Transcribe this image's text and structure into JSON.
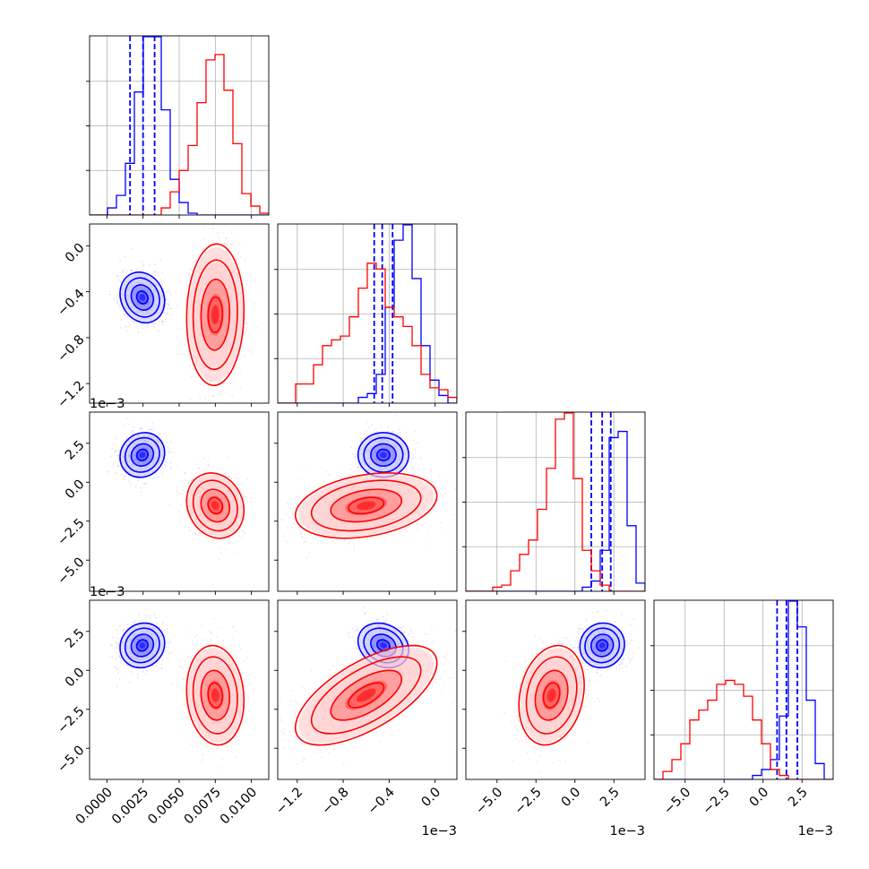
{
  "chart_data": {
    "type": "corner",
    "grid": true,
    "colors": {
      "blue": "#0000ff",
      "red": "#ff0000"
    },
    "parameters": [
      {
        "range": [
          -0.0012,
          0.0112
        ],
        "ticks": [
          0.0,
          0.0025,
          0.005,
          0.0075,
          0.01
        ],
        "tick_labels": [
          "0.0000",
          "0.0025",
          "0.0050",
          "0.0075",
          "0.0100"
        ],
        "offset_label": ""
      },
      {
        "range": [
          -1.37,
          0.19
        ],
        "ticks": [
          -1.2,
          -0.8,
          -0.4,
          0.0
        ],
        "tick_labels": [
          "−1.2",
          "−0.8",
          "−0.4",
          "0.0"
        ],
        "offset_label": "1e−3"
      },
      {
        "range": [
          -7.0,
          4.5
        ],
        "ticks": [
          -5.0,
          -2.5,
          0.0,
          2.5
        ],
        "tick_labels": [
          "−5.0",
          "−2.5",
          "0.0",
          "2.5"
        ],
        "offset_label": "1e−3"
      },
      {
        "range": [
          -7.0,
          4.5
        ],
        "ticks": [
          -5.0,
          -2.5,
          0.0,
          2.5
        ],
        "tick_labels": [
          "−5.0",
          "−2.5",
          "0.0",
          "2.5"
        ],
        "offset_label": "1e−3"
      }
    ],
    "series": [
      {
        "color": "#0000ff",
        "means": [
          0.00245,
          -0.45,
          1.75,
          1.6
        ],
        "sds": [
          0.0007,
          0.1,
          0.65,
          0.65
        ],
        "corr": [
          [
            0,
            1,
            -0.15
          ],
          [
            0,
            2,
            0.1
          ],
          [
            0,
            3,
            0.1
          ],
          [
            1,
            2,
            0.0
          ],
          [
            1,
            3,
            -0.2
          ],
          [
            2,
            3,
            0.05
          ]
        ],
        "quantiles": [
          [
            0.0016,
            0.0025,
            0.0033
          ],
          [
            -0.53,
            -0.46,
            -0.37
          ],
          [
            1.05,
            1.75,
            2.3
          ],
          [
            0.9,
            1.5,
            2.2
          ]
        ],
        "histograms": [
          [
            0,
            0,
            0.04,
            0.11,
            0.29,
            0.69,
            1.0,
            1.0,
            0.59,
            0.2,
            0.07,
            0.01,
            0,
            0,
            0,
            0,
            0,
            0,
            0,
            0
          ],
          [
            0,
            0,
            0,
            0,
            0,
            0,
            0,
            0,
            0,
            0.03,
            0.05,
            0.15,
            0.5,
            0.85,
            0.93,
            0.65,
            0.3,
            0.12,
            0.04,
            0
          ],
          [
            0,
            0,
            0,
            0,
            0,
            0,
            0,
            0,
            0,
            0,
            0,
            0,
            0,
            0.02,
            0.05,
            0.2,
            0.75,
            0.78,
            0.32,
            0.04
          ],
          [
            0,
            0,
            0,
            0,
            0,
            0,
            0,
            0,
            0,
            0,
            0,
            0.02,
            0.05,
            0.1,
            0.32,
            0.9,
            0.77,
            0.4,
            0.08,
            0
          ]
        ]
      },
      {
        "color": "#ff0000",
        "means": [
          0.0075,
          -0.6,
          -1.5,
          -1.6
        ],
        "sds": [
          0.0009,
          0.28,
          0.95,
          1.45
        ],
        "corr": [
          [
            0,
            1,
            0.05
          ],
          [
            0,
            2,
            -0.15
          ],
          [
            0,
            3,
            -0.1
          ],
          [
            1,
            2,
            0.3
          ],
          [
            1,
            3,
            0.65
          ],
          [
            2,
            3,
            0.2
          ]
        ],
        "quantiles": [],
        "histograms": [
          [
            0,
            0,
            0,
            0,
            0,
            0,
            0,
            0,
            0.04,
            0.13,
            0.25,
            0.39,
            0.63,
            0.87,
            0.9,
            0.7,
            0.4,
            0.12,
            0.05,
            0.01
          ],
          [
            0,
            0,
            0.1,
            0.1,
            0.2,
            0.3,
            0.33,
            0.35,
            0.45,
            0.6,
            0.73,
            0.7,
            0.5,
            0.45,
            0.4,
            0.3,
            0.15,
            0.08,
            0.07,
            0.03
          ],
          [
            0,
            0,
            0,
            0.02,
            0.03,
            0.1,
            0.18,
            0.25,
            0.4,
            0.6,
            0.84,
            0.87,
            0.55,
            0.2,
            0.1,
            0.03,
            0,
            0,
            0,
            0
          ],
          [
            0,
            0.04,
            0.1,
            0.18,
            0.3,
            0.35,
            0.4,
            0.48,
            0.5,
            0.48,
            0.42,
            0.3,
            0.18,
            0.05,
            0.02,
            0,
            0,
            0,
            0,
            0
          ]
        ]
      }
    ]
  }
}
